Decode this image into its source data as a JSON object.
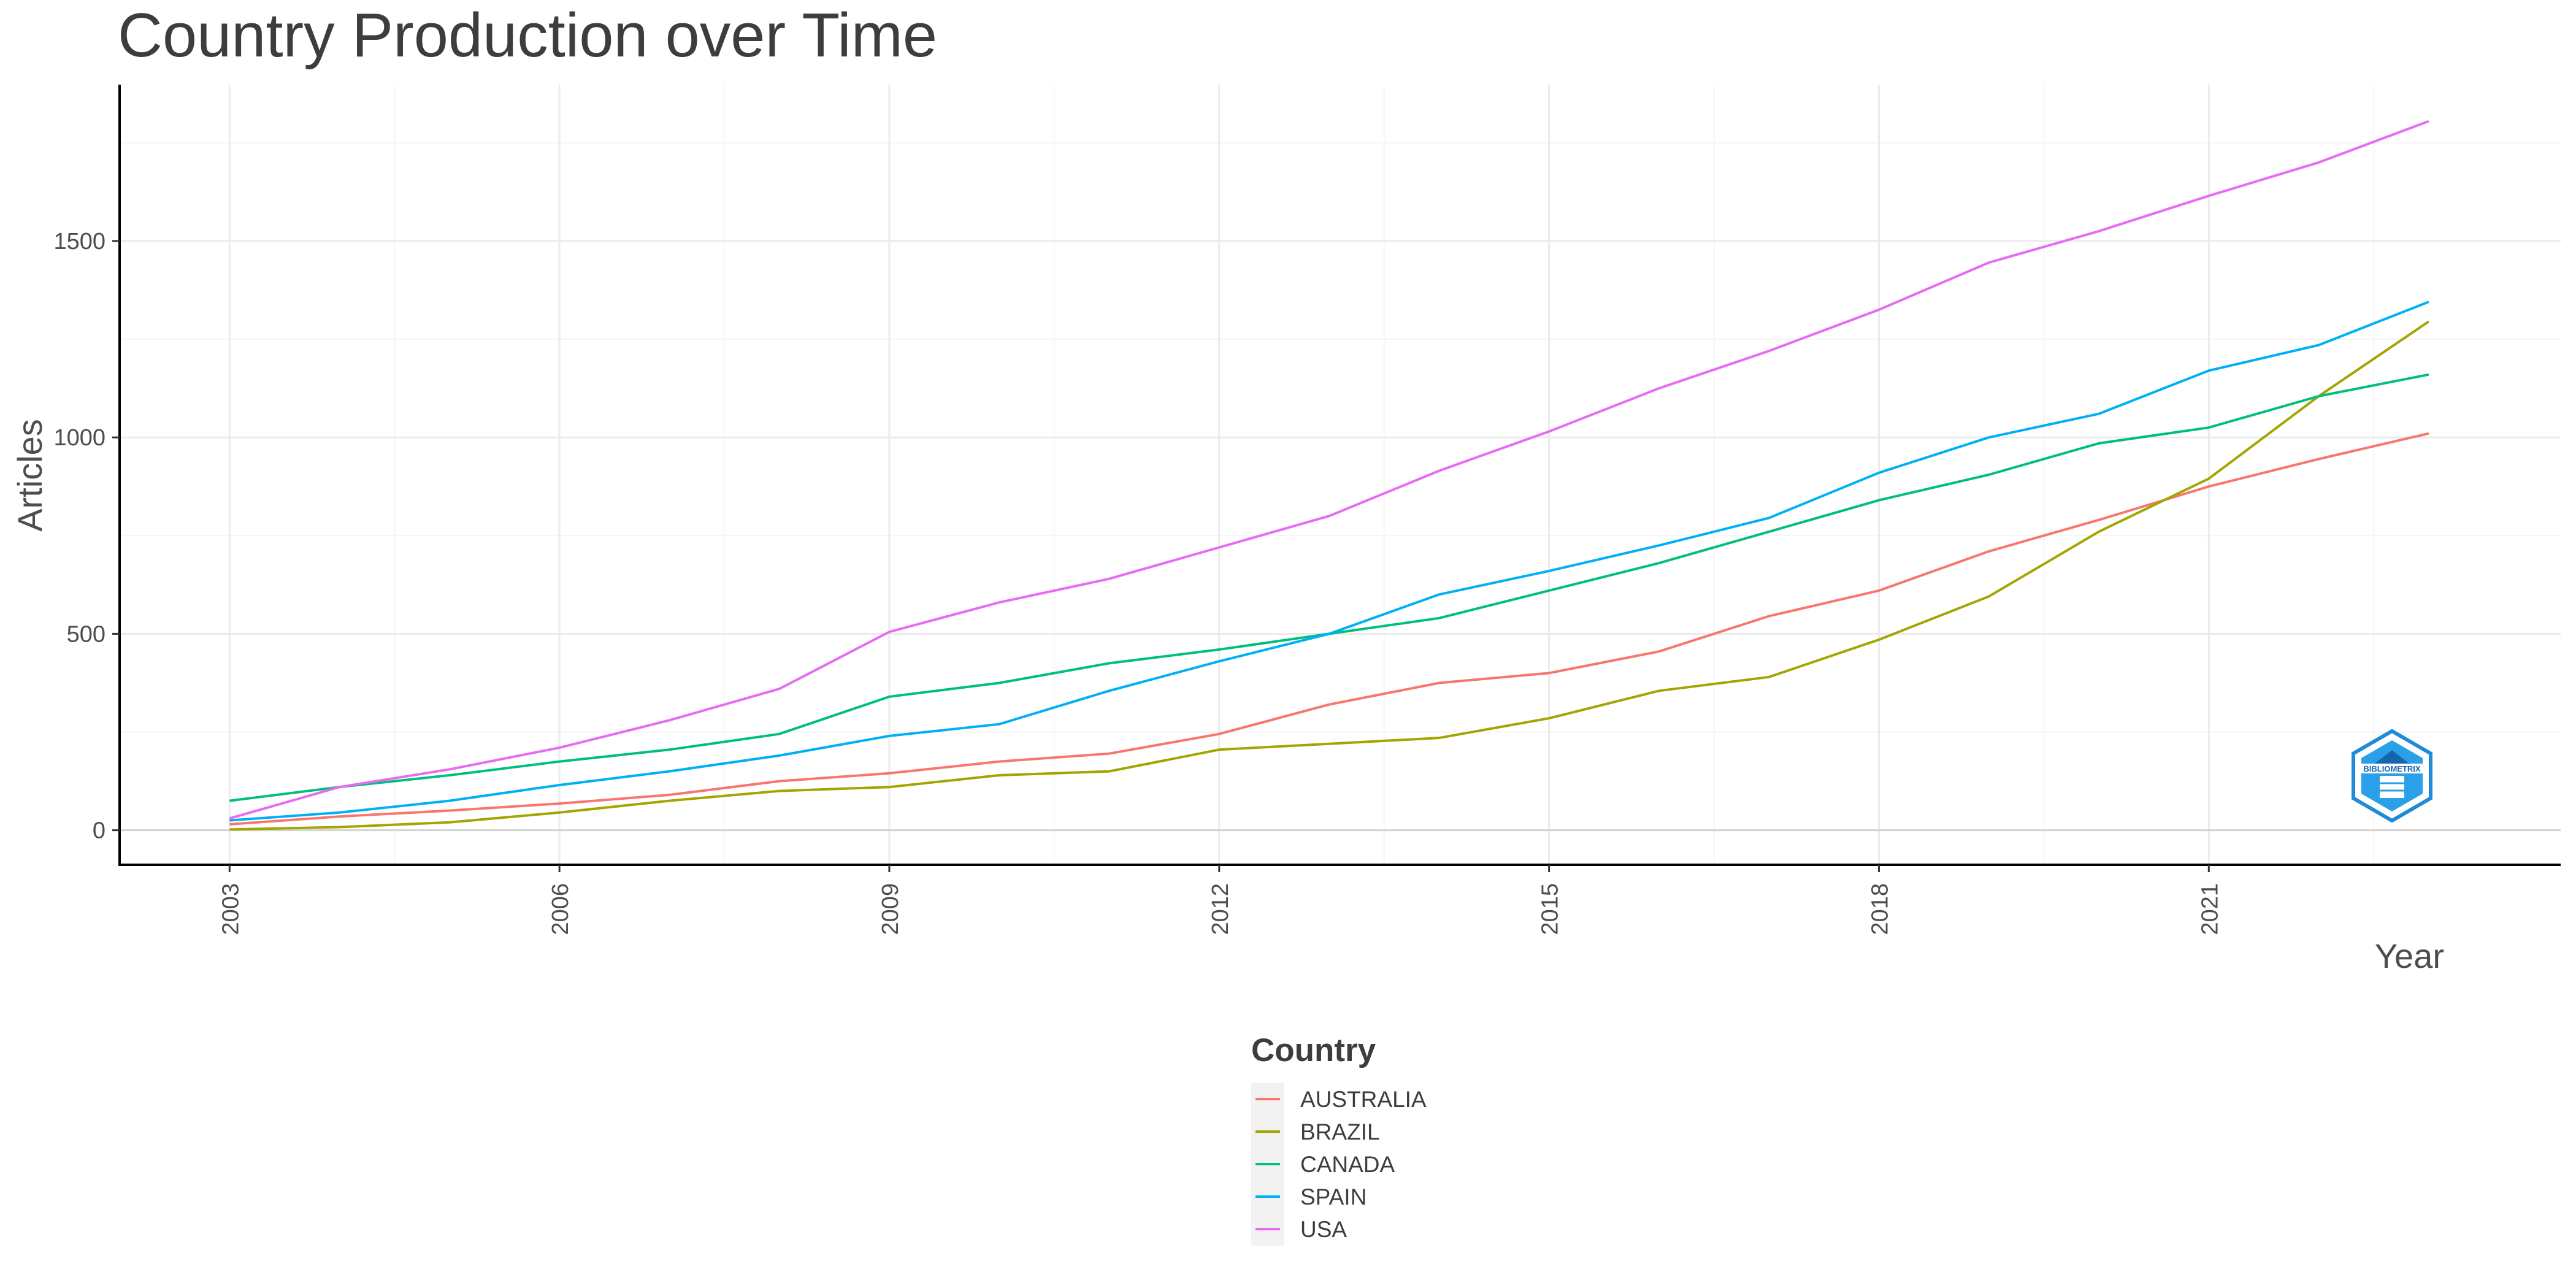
{
  "chart_data": {
    "type": "line",
    "title": "Country Production over Time",
    "xlabel": "Year",
    "ylabel": "Articles",
    "x": [
      2003,
      2004,
      2005,
      2006,
      2007,
      2008,
      2009,
      2010,
      2011,
      2012,
      2013,
      2014,
      2015,
      2016,
      2017,
      2018,
      2019,
      2020,
      2021,
      2022,
      2023
    ],
    "xlim": [
      2002,
      2024.2
    ],
    "ylim": [
      -88,
      1898
    ],
    "x_ticks": [
      2003,
      2006,
      2009,
      2012,
      2015,
      2018,
      2021
    ],
    "y_ticks": [
      0,
      500,
      1000,
      1500
    ],
    "grid": true,
    "legend": {
      "title": "Country",
      "position": "bottom"
    },
    "series": [
      {
        "name": "AUSTRALIA",
        "color": "#F8766D",
        "values": [
          15,
          35,
          50,
          68,
          90,
          125,
          145,
          175,
          195,
          245,
          320,
          375,
          400,
          455,
          545,
          610,
          710,
          790,
          875,
          945,
          1010
        ]
      },
      {
        "name": "BRAZIL",
        "color": "#A3A500",
        "values": [
          2,
          8,
          20,
          45,
          75,
          100,
          110,
          140,
          150,
          205,
          220,
          235,
          285,
          355,
          390,
          485,
          595,
          760,
          895,
          1105,
          1295
        ]
      },
      {
        "name": "CANADA",
        "color": "#00BF7D",
        "values": [
          75,
          110,
          140,
          175,
          205,
          245,
          340,
          375,
          425,
          460,
          500,
          540,
          610,
          680,
          760,
          840,
          905,
          985,
          1025,
          1105,
          1160
        ]
      },
      {
        "name": "SPAIN",
        "color": "#00B0F6",
        "values": [
          25,
          45,
          75,
          115,
          150,
          190,
          240,
          270,
          355,
          430,
          500,
          600,
          660,
          725,
          795,
          910,
          1000,
          1060,
          1170,
          1235,
          1345
        ]
      },
      {
        "name": "USA",
        "color": "#E76BF3",
        "values": [
          30,
          110,
          155,
          210,
          280,
          360,
          505,
          580,
          640,
          720,
          800,
          915,
          1015,
          1125,
          1220,
          1325,
          1445,
          1525,
          1615,
          1700,
          1805
        ]
      }
    ]
  },
  "logo": {
    "text": "BIBLIOMETRIX",
    "color": "#1f8bd6"
  }
}
